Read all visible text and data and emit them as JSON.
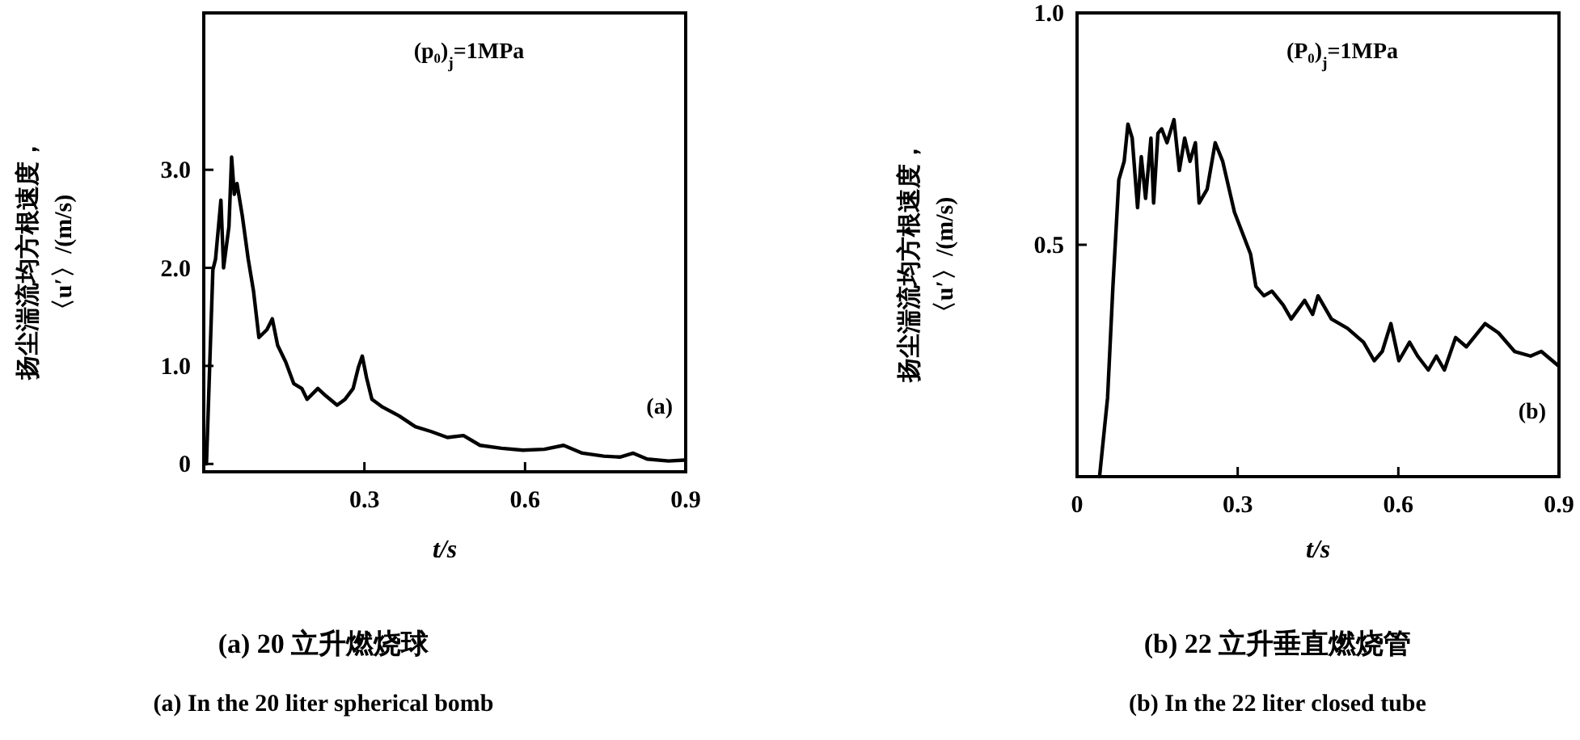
{
  "chart_data": [
    {
      "type": "line",
      "xlabel": "t/s",
      "ylabel": "扬尘湍流均方根速度，〈u′〉/(m/s)",
      "xlim": [
        0,
        0.9
      ],
      "ylim": [
        -0.08,
        4.6
      ],
      "xticks": [
        {
          "value": 0.3,
          "label": "0.3"
        },
        {
          "value": 0.6,
          "label": "0.6"
        },
        {
          "value": 0.9,
          "label": "0.9"
        }
      ],
      "yticks": [
        0,
        {
          "value": 1,
          "label": "1.0"
        },
        {
          "value": 2,
          "label": "2.0"
        },
        {
          "value": 3,
          "label": "3.0"
        }
      ],
      "annotations": [
        "(p₀)$_{j}$=1MPa",
        "(a)",
        "(a)  20 立升燃烧球",
        "(a)  In the 20 liter spherical bomb"
      ],
      "series": [
        {
          "color": "#000000",
          "x": [
            0.005,
            0.017,
            0.022,
            0.032,
            0.037,
            0.047,
            0.052,
            0.057,
            0.062,
            0.072,
            0.083,
            0.093,
            0.103,
            0.118,
            0.128,
            0.138,
            0.153,
            0.168,
            0.183,
            0.193,
            0.213,
            0.229,
            0.249,
            0.264,
            0.279,
            0.289,
            0.296,
            0.304,
            0.314,
            0.334,
            0.365,
            0.395,
            0.425,
            0.455,
            0.485,
            0.516,
            0.556,
            0.596,
            0.636,
            0.672,
            0.707,
            0.747,
            0.777,
            0.802,
            0.828,
            0.868,
            0.898
          ],
          "values": [
            0,
            1.98,
            2.09,
            2.69,
            2.0,
            2.42,
            3.13,
            2.75,
            2.86,
            2.53,
            2.09,
            1.76,
            1.29,
            1.37,
            1.48,
            1.21,
            1.04,
            0.82,
            0.77,
            0.66,
            0.77,
            0.69,
            0.6,
            0.66,
            0.77,
            0.99,
            1.1,
            0.88,
            0.66,
            0.58,
            0.49,
            0.38,
            0.33,
            0.27,
            0.29,
            0.19,
            0.16,
            0.14,
            0.15,
            0.19,
            0.11,
            0.08,
            0.07,
            0.11,
            0.05,
            0.03,
            0.04
          ]
        }
      ]
    },
    {
      "type": "line",
      "xlabel": "t/s",
      "ylabel": "扬尘湍流均方根速度，〈u′〉/(m/s)",
      "xlim": [
        0,
        0.9
      ],
      "ylim": [
        0,
        1
      ],
      "xticks": [
        0,
        {
          "value": 0.3,
          "label": "0.3"
        },
        {
          "value": 0.6,
          "label": "0.6"
        },
        {
          "value": 0.9,
          "label": "0.9"
        }
      ],
      "yticks": [
        {
          "value": 0,
          "label": null
        },
        0.5,
        {
          "value": 1,
          "label": "1.0"
        }
      ],
      "annotations": [
        "(P₀)$_{j}$=1MPa",
        "(b)",
        "(b)  22 立升垂直燃烧管",
        "(b)  In the 22 liter closed tube"
      ],
      "series": [
        {
          "color": "#000000",
          "x": [
            0.042,
            0.057,
            0.067,
            0.078,
            0.088,
            0.095,
            0.103,
            0.113,
            0.12,
            0.128,
            0.138,
            0.143,
            0.151,
            0.158,
            0.168,
            0.181,
            0.191,
            0.201,
            0.211,
            0.221,
            0.228,
            0.243,
            0.258,
            0.272,
            0.294,
            0.324,
            0.334,
            0.349,
            0.364,
            0.385,
            0.4,
            0.425,
            0.44,
            0.45,
            0.475,
            0.505,
            0.535,
            0.555,
            0.57,
            0.586,
            0.601,
            0.621,
            0.636,
            0.656,
            0.671,
            0.686,
            0.707,
            0.727,
            0.762,
            0.787,
            0.817,
            0.847,
            0.867,
            0.898
          ],
          "values": [
            0,
            0.17,
            0.41,
            0.64,
            0.68,
            0.76,
            0.73,
            0.58,
            0.69,
            0.6,
            0.73,
            0.59,
            0.74,
            0.75,
            0.72,
            0.77,
            0.66,
            0.73,
            0.68,
            0.72,
            0.59,
            0.62,
            0.72,
            0.68,
            0.57,
            0.48,
            0.41,
            0.39,
            0.4,
            0.37,
            0.34,
            0.38,
            0.35,
            0.39,
            0.34,
            0.32,
            0.29,
            0.25,
            0.27,
            0.33,
            0.25,
            0.29,
            0.26,
            0.23,
            0.26,
            0.23,
            0.3,
            0.28,
            0.33,
            0.31,
            0.27,
            0.26,
            0.27,
            0.24
          ]
        }
      ]
    }
  ]
}
